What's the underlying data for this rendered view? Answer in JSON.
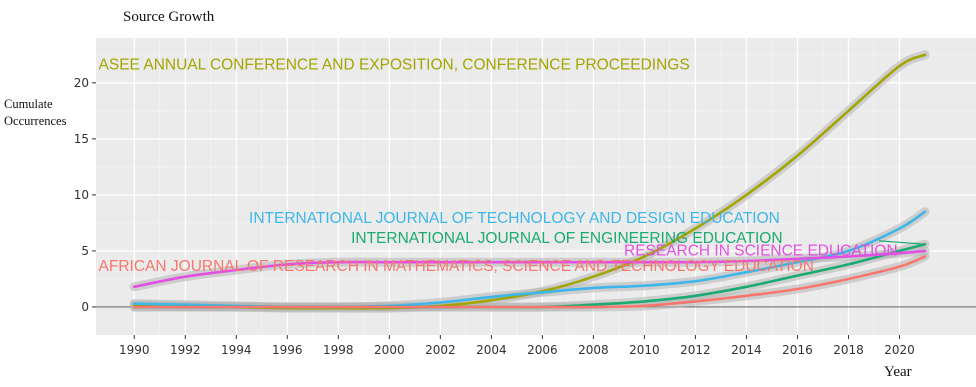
{
  "chart_data": {
    "type": "line",
    "title": "Source Growth",
    "xlabel": "Year",
    "ylabel_lines": [
      "Cumulate",
      "Occurrences"
    ],
    "xlim": [
      1988.5,
      2023
    ],
    "ylim": [
      -2.5,
      24
    ],
    "grid": true,
    "x_ticks": [
      1990,
      1992,
      1994,
      1996,
      1998,
      2000,
      2002,
      2004,
      2006,
      2008,
      2010,
      2012,
      2014,
      2016,
      2018,
      2020
    ],
    "y_ticks": [
      0,
      5,
      10,
      15,
      20
    ],
    "series": [
      {
        "name": "ASEE ANNUAL CONFERENCE AND EXPOSITION, CONFERENCE PROCEEDINGS",
        "color": "#a3a500",
        "label_pos": [
          1988.6,
          21.2
        ],
        "x": [
          1990,
          1992,
          1994,
          1996,
          1998,
          2000,
          2002,
          2004,
          2006,
          2008,
          2010,
          2012,
          2014,
          2016,
          2018,
          2020,
          2021
        ],
        "y": [
          0.2,
          0.1,
          0,
          -0.1,
          -0.1,
          -0.1,
          0.1,
          0.6,
          1.4,
          2.7,
          4.5,
          7.0,
          10.0,
          13.5,
          17.5,
          21.5,
          22.5
        ]
      },
      {
        "name": "INTERNATIONAL JOURNAL OF TECHNOLOGY AND DESIGN EDUCATION",
        "color": "#3db7e9",
        "label_pos": [
          1994.5,
          7.5
        ],
        "x": [
          1990,
          1992,
          1994,
          1996,
          1998,
          2000,
          2002,
          2004,
          2006,
          2008,
          2010,
          2012,
          2014,
          2016,
          2018,
          2020,
          2021
        ],
        "y": [
          0.3,
          0.2,
          0.1,
          0,
          0,
          0.1,
          0.4,
          0.9,
          1.3,
          1.7,
          1.9,
          2.3,
          3.1,
          4.0,
          5.0,
          7.0,
          8.5
        ]
      },
      {
        "name": "INTERNATIONAL JOURNAL OF ENGINEERING EDUCATION",
        "color": "#1aab73",
        "label_pos": [
          1998.5,
          5.7
        ],
        "x": [
          1990,
          1992,
          1994,
          1996,
          1998,
          2000,
          2002,
          2004,
          2006,
          2008,
          2010,
          2012,
          2014,
          2016,
          2018,
          2020,
          2021
        ],
        "y": [
          0,
          0,
          0,
          0,
          0,
          0,
          0,
          0,
          0,
          0.2,
          0.5,
          1.0,
          1.8,
          2.8,
          3.8,
          5.0,
          5.6
        ]
      },
      {
        "name": "RESEARCH IN SCIENCE EDUCATION",
        "color": "#e34fe3",
        "label_pos": [
          2009.2,
          4.6
        ],
        "x": [
          1990,
          1992,
          1994,
          1996,
          1998,
          2000,
          2002,
          2004,
          2006,
          2008,
          2010,
          2012,
          2014,
          2016,
          2018,
          2020,
          2021
        ],
        "y": [
          1.8,
          2.7,
          3.3,
          3.8,
          4.0,
          4.0,
          4.0,
          4.0,
          4.0,
          4.0,
          4.0,
          4.0,
          4.1,
          4.3,
          4.5,
          4.8,
          5.0
        ]
      },
      {
        "name": "AFRICAN JOURNAL OF RESEARCH IN MATHEMATICS, SCIENCE AND TECHNOLOGY EDUCATION",
        "color": "#f8766d",
        "label_pos": [
          1988.6,
          3.2
        ],
        "x": [
          1990,
          1992,
          1994,
          1996,
          1998,
          2000,
          2002,
          2004,
          2006,
          2008,
          2010,
          2012,
          2014,
          2016,
          2018,
          2020,
          2021
        ],
        "y": [
          0,
          0,
          0,
          0,
          0,
          0,
          0,
          0,
          0,
          0,
          0.1,
          0.5,
          1.0,
          1.6,
          2.5,
          3.6,
          4.5
        ]
      }
    ]
  }
}
